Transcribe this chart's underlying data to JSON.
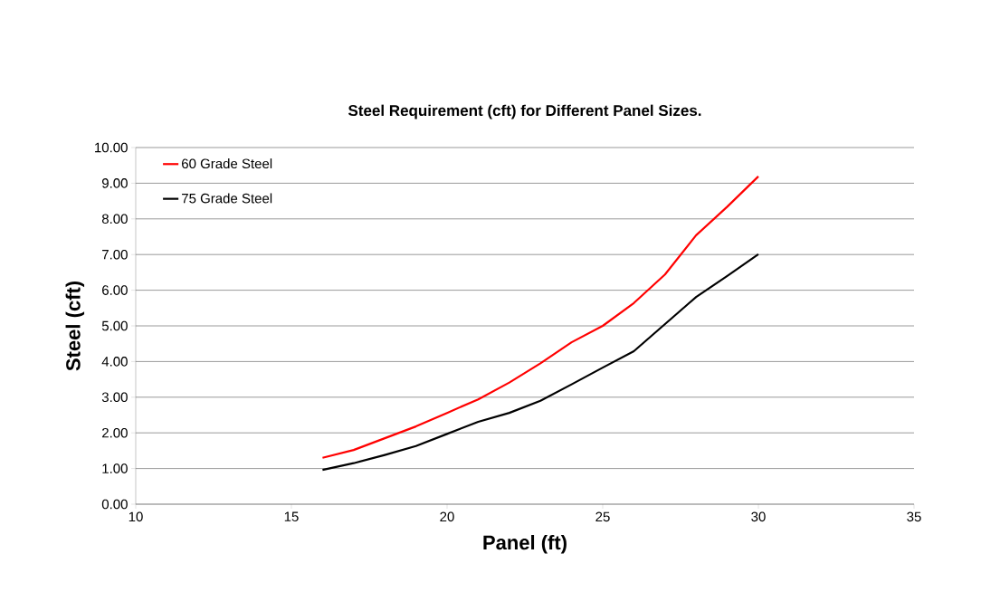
{
  "chart_data": {
    "type": "line",
    "title": "Steel Requirement (cft) for Different Panel Sizes.",
    "xlabel": "Panel (ft)",
    "ylabel": "Steel (cft)",
    "x": [
      16,
      17,
      18,
      19,
      20,
      21,
      22,
      23,
      24,
      25,
      26,
      27,
      28,
      29,
      30
    ],
    "series": [
      {
        "name": "60 Grade Steel",
        "color": "#ff0000",
        "values": [
          1.3,
          1.52,
          1.85,
          2.18,
          2.56,
          2.94,
          3.41,
          3.95,
          4.54,
          5.0,
          5.64,
          6.44,
          7.54,
          8.34,
          9.19
        ]
      },
      {
        "name": "75 Grade Steel",
        "color": "#000000",
        "values": [
          0.96,
          1.15,
          1.38,
          1.63,
          1.97,
          2.31,
          2.56,
          2.9,
          3.36,
          3.83,
          4.29,
          5.05,
          5.81,
          6.4,
          7.01
        ]
      }
    ],
    "xlim": [
      10,
      35
    ],
    "xticks": [
      10,
      15,
      20,
      25,
      30,
      35
    ],
    "ylim": [
      0,
      10
    ],
    "yticks": [
      {
        "value": 0,
        "label": "0.00"
      },
      {
        "value": 1,
        "label": "1.00"
      },
      {
        "value": 2,
        "label": "2.00"
      },
      {
        "value": 3,
        "label": "3.00"
      },
      {
        "value": 4,
        "label": "4.00"
      },
      {
        "value": 5,
        "label": "5.00"
      },
      {
        "value": 6,
        "label": "6.00"
      },
      {
        "value": 7,
        "label": "7.00"
      },
      {
        "value": 8,
        "label": "8.00"
      },
      {
        "value": 9,
        "label": "9.00"
      },
      {
        "value": 10,
        "label": "10.00"
      }
    ],
    "grid": "y",
    "legend": "top left",
    "marker": "none",
    "line_style": "solid"
  }
}
